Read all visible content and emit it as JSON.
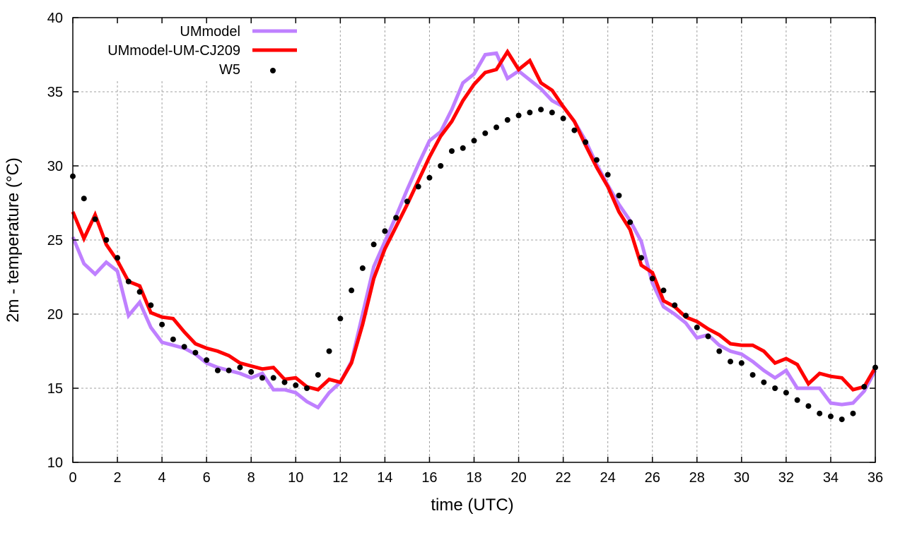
{
  "chart_data": {
    "type": "line",
    "title": "",
    "xlabel": "time (UTC)",
    "ylabel": "2m - temperature (°C)",
    "xlim": [
      0,
      36
    ],
    "ylim": [
      10,
      40
    ],
    "xticks": [
      0,
      2,
      4,
      6,
      8,
      10,
      12,
      14,
      16,
      18,
      20,
      22,
      24,
      26,
      28,
      30,
      32,
      34,
      36
    ],
    "yticks": [
      10,
      15,
      20,
      25,
      30,
      35,
      40
    ],
    "grid": true,
    "legend_position": "top-left",
    "x_step": 0.5,
    "series": [
      {
        "name": "UMmodel",
        "style": "line",
        "color": "#bf80ff",
        "values": [
          25.2,
          23.4,
          22.7,
          23.5,
          22.9,
          19.9,
          20.8,
          19.1,
          18.1,
          17.9,
          17.7,
          17.3,
          16.7,
          16.4,
          16.2,
          16.0,
          15.7,
          16.0,
          14.9,
          14.9,
          14.7,
          14.1,
          13.7,
          14.7,
          15.4,
          16.8,
          20.0,
          23.2,
          24.9,
          26.6,
          28.4,
          30.1,
          31.7,
          32.3,
          33.8,
          35.6,
          36.2,
          37.5,
          37.6,
          35.9,
          36.4,
          35.8,
          35.2,
          34.4,
          34.0,
          33.0,
          31.7,
          30.1,
          28.7,
          27.4,
          26.3,
          24.9,
          22.1,
          20.5,
          20.0,
          19.4,
          18.4,
          18.6,
          17.9,
          17.5,
          17.3,
          16.8,
          16.2,
          15.7,
          16.2,
          15.0,
          15.0,
          15.0,
          14.0,
          13.9,
          14.0,
          14.8,
          16.2
        ]
      },
      {
        "name": "UMmodel-UM-CJ209",
        "style": "line",
        "color": "#ff0000",
        "values": [
          26.9,
          25.1,
          26.7,
          24.7,
          23.6,
          22.2,
          21.9,
          20.1,
          19.8,
          19.7,
          18.8,
          18.0,
          17.7,
          17.5,
          17.2,
          16.7,
          16.5,
          16.3,
          16.4,
          15.6,
          15.7,
          15.1,
          14.9,
          15.6,
          15.4,
          16.7,
          19.3,
          22.4,
          24.4,
          25.9,
          27.4,
          29.0,
          30.6,
          32.0,
          33.0,
          34.4,
          35.5,
          36.3,
          36.5,
          37.7,
          36.5,
          37.1,
          35.6,
          35.1,
          34.0,
          33.0,
          31.4,
          29.9,
          28.6,
          26.9,
          25.7,
          23.3,
          22.8,
          20.9,
          20.5,
          19.8,
          19.5,
          19.0,
          18.6,
          18.0,
          17.9,
          17.9,
          17.5,
          16.7,
          17.0,
          16.6,
          15.3,
          16.0,
          15.8,
          15.7,
          14.9,
          15.1,
          16.4
        ]
      },
      {
        "name": "W5",
        "style": "points",
        "color": "#000000",
        "values": [
          29.3,
          27.8,
          26.4,
          25.0,
          23.8,
          22.2,
          21.5,
          20.6,
          19.3,
          18.3,
          17.8,
          17.4,
          16.9,
          16.2,
          16.2,
          16.4,
          16.1,
          15.7,
          15.7,
          15.4,
          15.2,
          15.0,
          15.9,
          17.5,
          19.7,
          21.6,
          23.1,
          24.7,
          25.6,
          26.5,
          27.6,
          28.6,
          29.2,
          30.0,
          31.0,
          31.2,
          31.7,
          32.2,
          32.6,
          33.1,
          33.4,
          33.6,
          33.8,
          33.6,
          33.2,
          32.4,
          31.6,
          30.4,
          29.4,
          28.0,
          26.2,
          23.8,
          22.4,
          21.6,
          20.6,
          19.9,
          19.1,
          18.5,
          17.5,
          16.8,
          16.7,
          15.9,
          15.4,
          15.0,
          14.7,
          14.2,
          13.8,
          13.3,
          13.1,
          12.9,
          13.3,
          15.1,
          16.4
        ]
      }
    ]
  }
}
